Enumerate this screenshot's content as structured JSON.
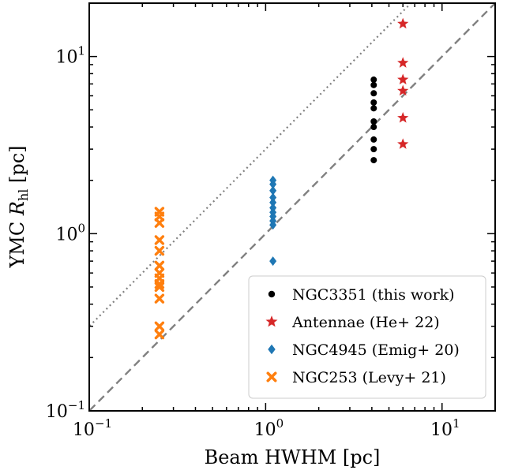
{
  "chart_data": {
    "type": "scatter",
    "xscale": "log",
    "yscale": "log",
    "xlim": [
      0.1,
      20
    ],
    "ylim": [
      0.1,
      20
    ],
    "xlabel": "Beam HWHM [pc]",
    "ylabel_main": "YMC ",
    "ylabel_symbol": "R",
    "ylabel_sub": "hl",
    "ylabel_unit": " [pc]",
    "x_ticks": [
      {
        "value": 0.1,
        "base": "10",
        "exp": "−1"
      },
      {
        "value": 1,
        "base": "10",
        "exp": "0"
      },
      {
        "value": 10,
        "base": "10",
        "exp": "1"
      }
    ],
    "y_ticks": [
      {
        "value": 0.1,
        "base": "10",
        "exp": "−1"
      },
      {
        "value": 1,
        "base": "10",
        "exp": "0"
      },
      {
        "value": 10,
        "base": "10",
        "exp": "1"
      }
    ],
    "grid": false,
    "legend_position": "lower-right",
    "reference_lines": [
      {
        "style": "dashed",
        "relation": "y = x",
        "color": "#808080"
      },
      {
        "style": "dotted",
        "relation": "y = 3x",
        "color": "#808080"
      }
    ],
    "series": [
      {
        "name": "NGC3351 (this work)",
        "marker": "circle",
        "color": "#000000",
        "points": [
          {
            "x": 4.1,
            "y": 7.4
          },
          {
            "x": 4.1,
            "y": 6.9
          },
          {
            "x": 4.1,
            "y": 6.2
          },
          {
            "x": 4.1,
            "y": 5.5
          },
          {
            "x": 4.1,
            "y": 5.1
          },
          {
            "x": 4.1,
            "y": 4.3
          },
          {
            "x": 4.1,
            "y": 4.0
          },
          {
            "x": 4.1,
            "y": 3.4
          },
          {
            "x": 4.1,
            "y": 3.0
          },
          {
            "x": 4.1,
            "y": 2.6
          }
        ]
      },
      {
        "name": "Antennae (He+ 22)",
        "marker": "star",
        "color": "#d62728",
        "points": [
          {
            "x": 6.0,
            "y": 15.3
          },
          {
            "x": 6.0,
            "y": 9.2
          },
          {
            "x": 6.0,
            "y": 7.4
          },
          {
            "x": 6.0,
            "y": 6.4
          },
          {
            "x": 6.0,
            "y": 4.5
          },
          {
            "x": 6.0,
            "y": 3.2
          }
        ]
      },
      {
        "name": "NGC4945 (Emig+ 20)",
        "marker": "diamond",
        "color": "#1f77b4",
        "points": [
          {
            "x": 1.1,
            "y": 2.0
          },
          {
            "x": 1.1,
            "y": 1.9
          },
          {
            "x": 1.1,
            "y": 1.75
          },
          {
            "x": 1.1,
            "y": 1.6
          },
          {
            "x": 1.1,
            "y": 1.5
          },
          {
            "x": 1.1,
            "y": 1.4
          },
          {
            "x": 1.1,
            "y": 1.32
          },
          {
            "x": 1.1,
            "y": 1.25
          },
          {
            "x": 1.1,
            "y": 1.18
          },
          {
            "x": 1.1,
            "y": 1.12
          },
          {
            "x": 1.1,
            "y": 0.7
          }
        ]
      },
      {
        "name": "NGC253 (Levy+ 21)",
        "marker": "x",
        "color": "#ff7f0e",
        "points": [
          {
            "x": 0.25,
            "y": 1.33
          },
          {
            "x": 0.25,
            "y": 1.25
          },
          {
            "x": 0.25,
            "y": 1.15
          },
          {
            "x": 0.25,
            "y": 0.92
          },
          {
            "x": 0.25,
            "y": 0.8
          },
          {
            "x": 0.25,
            "y": 0.66
          },
          {
            "x": 0.25,
            "y": 0.6
          },
          {
            "x": 0.25,
            "y": 0.56
          },
          {
            "x": 0.25,
            "y": 0.52
          },
          {
            "x": 0.25,
            "y": 0.5
          },
          {
            "x": 0.25,
            "y": 0.43
          },
          {
            "x": 0.25,
            "y": 0.3
          },
          {
            "x": 0.25,
            "y": 0.27
          }
        ]
      }
    ]
  }
}
